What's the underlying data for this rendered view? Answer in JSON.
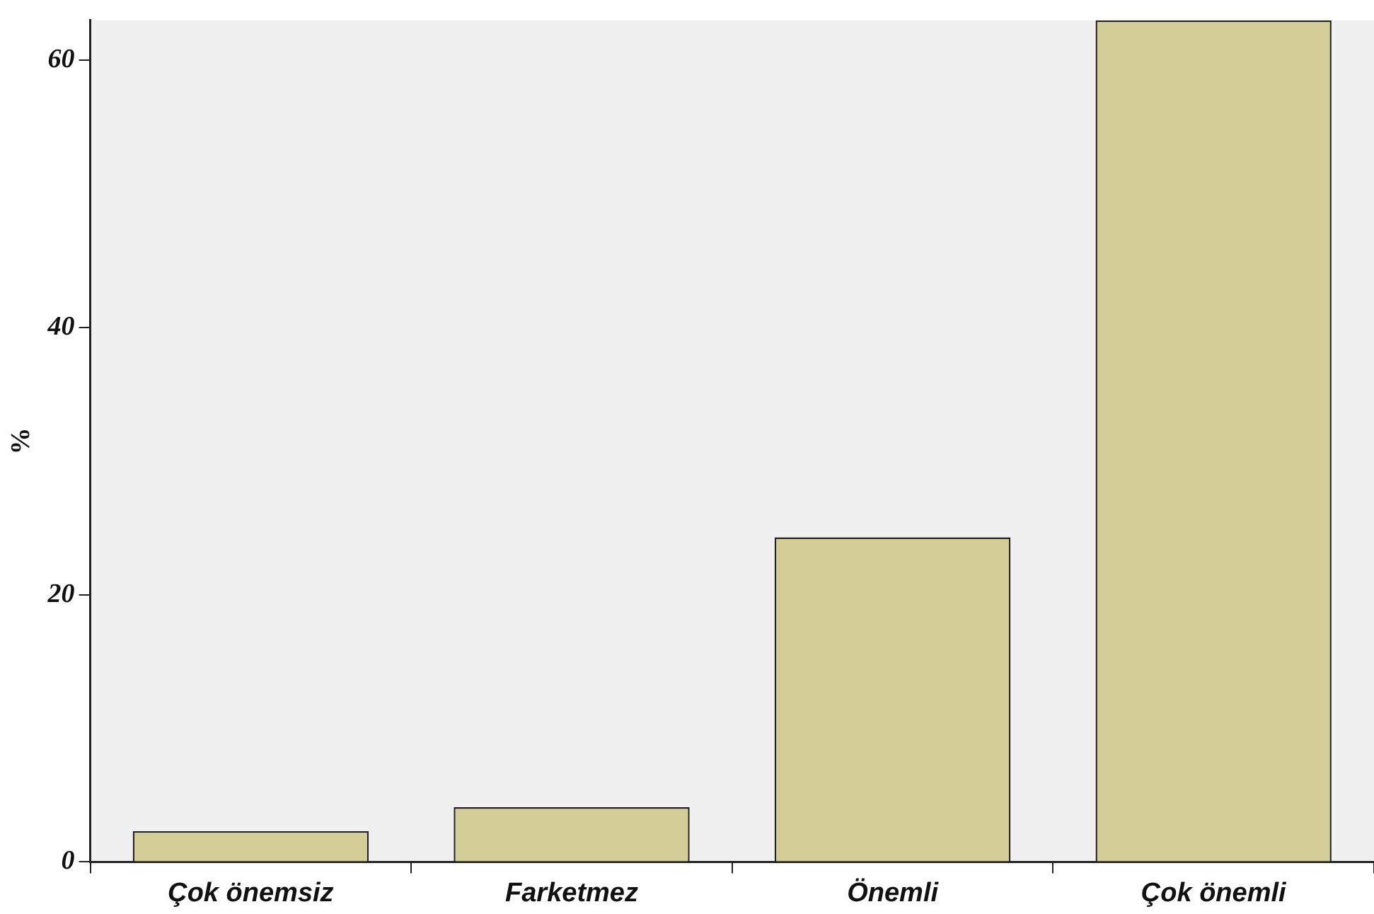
{
  "chart_data": {
    "type": "bar",
    "ylabel": "%",
    "categories": [
      "Çok önemsiz",
      "Farketmez",
      "Önemli",
      "Çok önemli"
    ],
    "values": [
      2.3,
      4.1,
      24.3,
      63
    ],
    "color": "#d3ce97",
    "ylim": [
      0,
      63
    ],
    "yticks": [
      0,
      20,
      40,
      60
    ],
    "grid": false,
    "legend": false
  }
}
